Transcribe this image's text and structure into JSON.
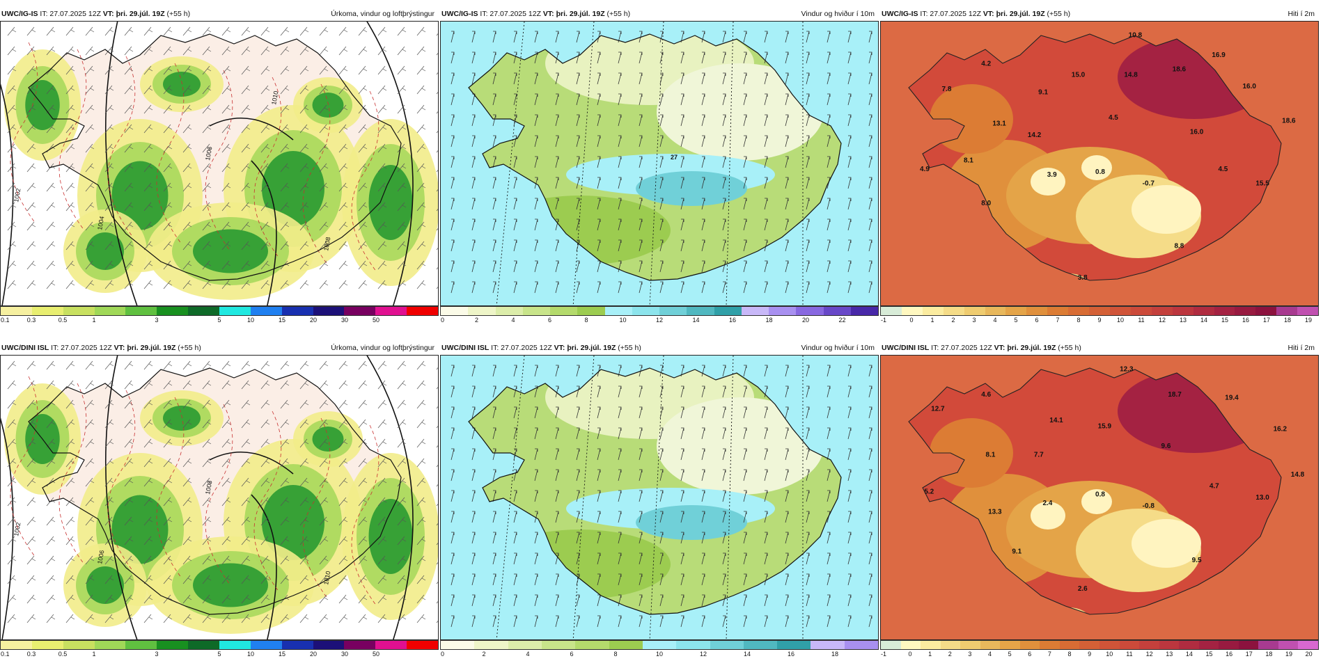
{
  "panels": [
    {
      "id": "p1",
      "type": "precip",
      "model": "UWC/IG-IS",
      "it": "IT: 27.07.2025 12Z",
      "vt": "VT: þri. 29.júl. 19Z",
      "lead": "(+55 h)",
      "variable": "Úrkoma, vindur og loftþrýstingur",
      "ticks": [
        "0.1",
        "0.3",
        "0.5",
        "1",
        "3",
        "5",
        "10",
        "15",
        "20",
        "30",
        "50"
      ],
      "colors": [
        "#f6f0a0",
        "#e8ee70",
        "#c8e060",
        "#a0d858",
        "#60c040",
        "#189020",
        "#0e6a28",
        "#20e8e0",
        "#2080f0",
        "#1830b0",
        "#1c1078",
        "#780060",
        "#e01090",
        "#f00000"
      ],
      "isobar_labels": [
        "1002",
        "1004",
        "1006",
        "1008",
        "1010"
      ]
    },
    {
      "id": "p2",
      "type": "wind",
      "model": "UWC/IG-IS",
      "it": "IT: 27.07.2025 12Z",
      "vt": "VT: þri. 29.júl. 19Z",
      "lead": "(+55 h)",
      "variable": "Vindur og hviður í 10m",
      "ticks": [
        "0",
        "2",
        "4",
        "6",
        "8",
        "10",
        "12",
        "14",
        "16",
        "18",
        "20",
        "22"
      ],
      "colors": [
        "#fbfbe8",
        "#eef5c8",
        "#dcedaa",
        "#c8e48a",
        "#b4da6c",
        "#9ccc50",
        "#a8f0f8",
        "#8ce4ec",
        "#70d0d8",
        "#50b8c0",
        "#30a0a8",
        "#c8b8f8",
        "#a890f0",
        "#8868e0",
        "#6848c8",
        "#4828a8"
      ],
      "gust_label": "27"
    },
    {
      "id": "p3",
      "type": "temp",
      "model": "UWC/IG-IS",
      "it": "IT: 27.07.2025 12Z",
      "vt": "VT: þri. 29.júl. 19Z",
      "lead": "(+55 h)",
      "variable": "Hiti í 2m",
      "ticks": [
        "-1",
        "0",
        "1",
        "2",
        "3",
        "4",
        "5",
        "6",
        "7",
        "8",
        "9",
        "10",
        "11",
        "12",
        "13",
        "14",
        "15",
        "16",
        "17",
        "18",
        "19"
      ],
      "colors": [
        "#d8ecd8",
        "#fff8c0",
        "#fbeca0",
        "#f5dc88",
        "#efcc70",
        "#e8b85c",
        "#e4a448",
        "#e0903c",
        "#dc7c34",
        "#d86c34",
        "#d46036",
        "#d05438",
        "#cc4a3a",
        "#c4403c",
        "#bc363e",
        "#b02c40",
        "#a42242",
        "#981a40",
        "#8c123e",
        "#a83a90",
        "#c050b0"
      ],
      "values": [
        {
          "v": "10.8",
          "x": 0.58,
          "y": 0.03
        },
        {
          "v": "4.2",
          "x": 0.24,
          "y": 0.13
        },
        {
          "v": "16.9",
          "x": 0.77,
          "y": 0.1
        },
        {
          "v": "7.8",
          "x": 0.15,
          "y": 0.22
        },
        {
          "v": "9.1",
          "x": 0.37,
          "y": 0.23
        },
        {
          "v": "15.0",
          "x": 0.45,
          "y": 0.17
        },
        {
          "v": "14.8",
          "x": 0.57,
          "y": 0.17
        },
        {
          "v": "18.6",
          "x": 0.68,
          "y": 0.15
        },
        {
          "v": "16.0",
          "x": 0.84,
          "y": 0.21
        },
        {
          "v": "13.1",
          "x": 0.27,
          "y": 0.34
        },
        {
          "v": "14.2",
          "x": 0.35,
          "y": 0.38
        },
        {
          "v": "4.5",
          "x": 0.53,
          "y": 0.32
        },
        {
          "v": "16.0",
          "x": 0.72,
          "y": 0.37
        },
        {
          "v": "18.6",
          "x": 0.93,
          "y": 0.33
        },
        {
          "v": "8.1",
          "x": 0.2,
          "y": 0.47
        },
        {
          "v": "4.9",
          "x": 0.1,
          "y": 0.5
        },
        {
          "v": "3.9",
          "x": 0.39,
          "y": 0.52
        },
        {
          "v": "0.8",
          "x": 0.5,
          "y": 0.51
        },
        {
          "v": "4.5",
          "x": 0.78,
          "y": 0.5
        },
        {
          "v": "-0.7",
          "x": 0.61,
          "y": 0.55
        },
        {
          "v": "15.5",
          "x": 0.87,
          "y": 0.55
        },
        {
          "v": "8.0",
          "x": 0.24,
          "y": 0.62
        },
        {
          "v": "8.8",
          "x": 0.68,
          "y": 0.77
        },
        {
          "v": "3.8",
          "x": 0.46,
          "y": 0.88
        }
      ]
    },
    {
      "id": "p4",
      "type": "precip",
      "model": "UWC/DINI ISL",
      "it": "IT: 27.07.2025 12Z",
      "vt": "VT: þri. 29.júl. 19Z",
      "lead": "(+55 h)",
      "variable": "Úrkoma, vindur og loftþrýstingur",
      "ticks": [
        "0.1",
        "0.3",
        "0.5",
        "1",
        "3",
        "5",
        "10",
        "15",
        "20",
        "30",
        "50"
      ],
      "colors": [
        "#f6f0a0",
        "#e8ee70",
        "#c8e060",
        "#a0d858",
        "#60c040",
        "#189020",
        "#0e6a28",
        "#20e8e0",
        "#2080f0",
        "#1830b0",
        "#1c1078",
        "#780060",
        "#e01090",
        "#f00000"
      ],
      "isobar_labels": [
        "1002",
        "1006",
        "1008",
        "1010"
      ]
    },
    {
      "id": "p5",
      "type": "wind",
      "model": "UWC/DINI ISL",
      "it": "IT: 27.07.2025 12Z",
      "vt": "VT: þri. 29.júl. 19Z",
      "lead": "(+55 h)",
      "variable": "Vindur og hviður í 10m",
      "ticks": [
        "0",
        "2",
        "4",
        "6",
        "8",
        "10",
        "12",
        "14",
        "16",
        "18"
      ],
      "colors": [
        "#fbfbe8",
        "#eef5c8",
        "#dcedaa",
        "#c8e48a",
        "#b4da6c",
        "#9ccc50",
        "#a8f0f8",
        "#8ce4ec",
        "#70d0d8",
        "#50b8c0",
        "#30a0a8",
        "#c8b8f8",
        "#a890f0"
      ],
      "gust_label": ""
    },
    {
      "id": "p6",
      "type": "temp",
      "model": "UWC/DINI ISL",
      "it": "IT: 27.07.2025 12Z",
      "vt": "VT: þri. 29.júl. 19Z",
      "lead": "(+55 h)",
      "variable": "Hiti í 2m",
      "ticks": [
        "-1",
        "0",
        "1",
        "2",
        "3",
        "4",
        "5",
        "6",
        "7",
        "8",
        "9",
        "10",
        "11",
        "12",
        "13",
        "14",
        "15",
        "16",
        "17",
        "18",
        "19",
        "20"
      ],
      "colors": [
        "#d8ecd8",
        "#fff8c0",
        "#fbeca0",
        "#f5dc88",
        "#efcc70",
        "#e8b85c",
        "#e4a448",
        "#e0903c",
        "#dc7c34",
        "#d86c34",
        "#d46036",
        "#d05438",
        "#cc4a3a",
        "#c4403c",
        "#bc363e",
        "#b02c40",
        "#a42242",
        "#981a40",
        "#8c123e",
        "#a83a90",
        "#c050b0",
        "#d868d0"
      ],
      "values": [
        {
          "v": "12.3",
          "x": 0.56,
          "y": 0.03
        },
        {
          "v": "4.6",
          "x": 0.24,
          "y": 0.12
        },
        {
          "v": "18.7",
          "x": 0.67,
          "y": 0.12
        },
        {
          "v": "19.4",
          "x": 0.8,
          "y": 0.13
        },
        {
          "v": "12.7",
          "x": 0.13,
          "y": 0.17
        },
        {
          "v": "14.1",
          "x": 0.4,
          "y": 0.21
        },
        {
          "v": "15.9",
          "x": 0.51,
          "y": 0.23
        },
        {
          "v": "16.2",
          "x": 0.91,
          "y": 0.24
        },
        {
          "v": "9.6",
          "x": 0.65,
          "y": 0.3
        },
        {
          "v": "8.1",
          "x": 0.25,
          "y": 0.33
        },
        {
          "v": "7.7",
          "x": 0.36,
          "y": 0.33
        },
        {
          "v": "14.8",
          "x": 0.95,
          "y": 0.4
        },
        {
          "v": "5.2",
          "x": 0.11,
          "y": 0.46
        },
        {
          "v": "4.7",
          "x": 0.76,
          "y": 0.44
        },
        {
          "v": "0.8",
          "x": 0.5,
          "y": 0.47
        },
        {
          "v": "13.0",
          "x": 0.87,
          "y": 0.48
        },
        {
          "v": "2.4",
          "x": 0.38,
          "y": 0.5
        },
        {
          "v": "-0.8",
          "x": 0.61,
          "y": 0.51
        },
        {
          "v": "13.3",
          "x": 0.26,
          "y": 0.53
        },
        {
          "v": "9.1",
          "x": 0.31,
          "y": 0.67
        },
        {
          "v": "9.5",
          "x": 0.72,
          "y": 0.7
        },
        {
          "v": "2.6",
          "x": 0.46,
          "y": 0.8
        }
      ]
    }
  ]
}
